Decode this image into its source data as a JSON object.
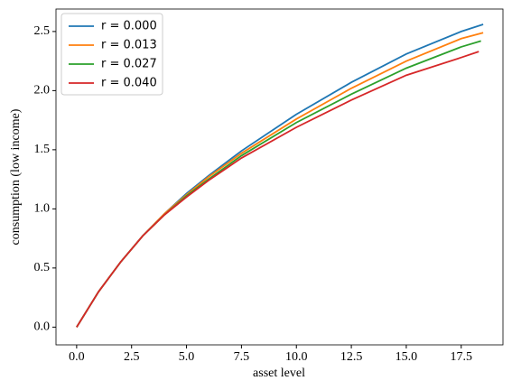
{
  "chart_data": {
    "type": "line",
    "xlabel": "asset level",
    "ylabel": "consumption (low income)",
    "xlim": [
      -0.94,
      19.4
    ],
    "ylim": [
      -0.15,
      2.69
    ],
    "xticks": [
      {
        "value": 0,
        "label": "0.0"
      },
      2.5,
      {
        "value": 5,
        "label": "5.0"
      },
      7.5,
      {
        "value": 10,
        "label": "10.0"
      },
      12.5,
      {
        "value": 15,
        "label": "15.0"
      },
      17.5
    ],
    "yticks": [
      {
        "value": 0,
        "label": "0.0"
      },
      0.5,
      {
        "value": 1,
        "label": "1.0"
      },
      1.5,
      {
        "value": 2,
        "label": "2.0"
      },
      2.5
    ],
    "legend": "upper left",
    "series": [
      {
        "name": "r = 0.000",
        "color": "#1f77b4",
        "x": [
          0,
          1,
          2,
          3,
          4,
          5,
          6,
          7.5,
          10,
          12.5,
          15,
          17.5,
          18.5
        ],
        "values": [
          0,
          0.3,
          0.55,
          0.77,
          0.96,
          1.13,
          1.28,
          1.49,
          1.8,
          2.07,
          2.31,
          2.5,
          2.56
        ]
      },
      {
        "name": "r = 0.013",
        "color": "#ff7f0e",
        "x": [
          0,
          1,
          2,
          3,
          4,
          5,
          6,
          7.5,
          10,
          12.5,
          15,
          17.5,
          18.5
        ],
        "values": [
          0,
          0.3,
          0.55,
          0.77,
          0.96,
          1.12,
          1.27,
          1.47,
          1.76,
          2.02,
          2.25,
          2.44,
          2.49
        ]
      },
      {
        "name": "r = 0.027",
        "color": "#2ca02c",
        "x": [
          0,
          1,
          2,
          3,
          4,
          5,
          6,
          7.5,
          10,
          12.5,
          15,
          17.5,
          18.4
        ],
        "values": [
          0,
          0.3,
          0.55,
          0.77,
          0.95,
          1.11,
          1.25,
          1.45,
          1.73,
          1.97,
          2.19,
          2.37,
          2.42
        ]
      },
      {
        "name": "r = 0.040",
        "color": "#d62728",
        "x": [
          0,
          1,
          2,
          3,
          4,
          5,
          6,
          7.5,
          10,
          12.5,
          15,
          17.5,
          18.3
        ],
        "values": [
          0,
          0.3,
          0.55,
          0.77,
          0.95,
          1.1,
          1.24,
          1.43,
          1.69,
          1.92,
          2.13,
          2.28,
          2.33
        ]
      }
    ]
  }
}
